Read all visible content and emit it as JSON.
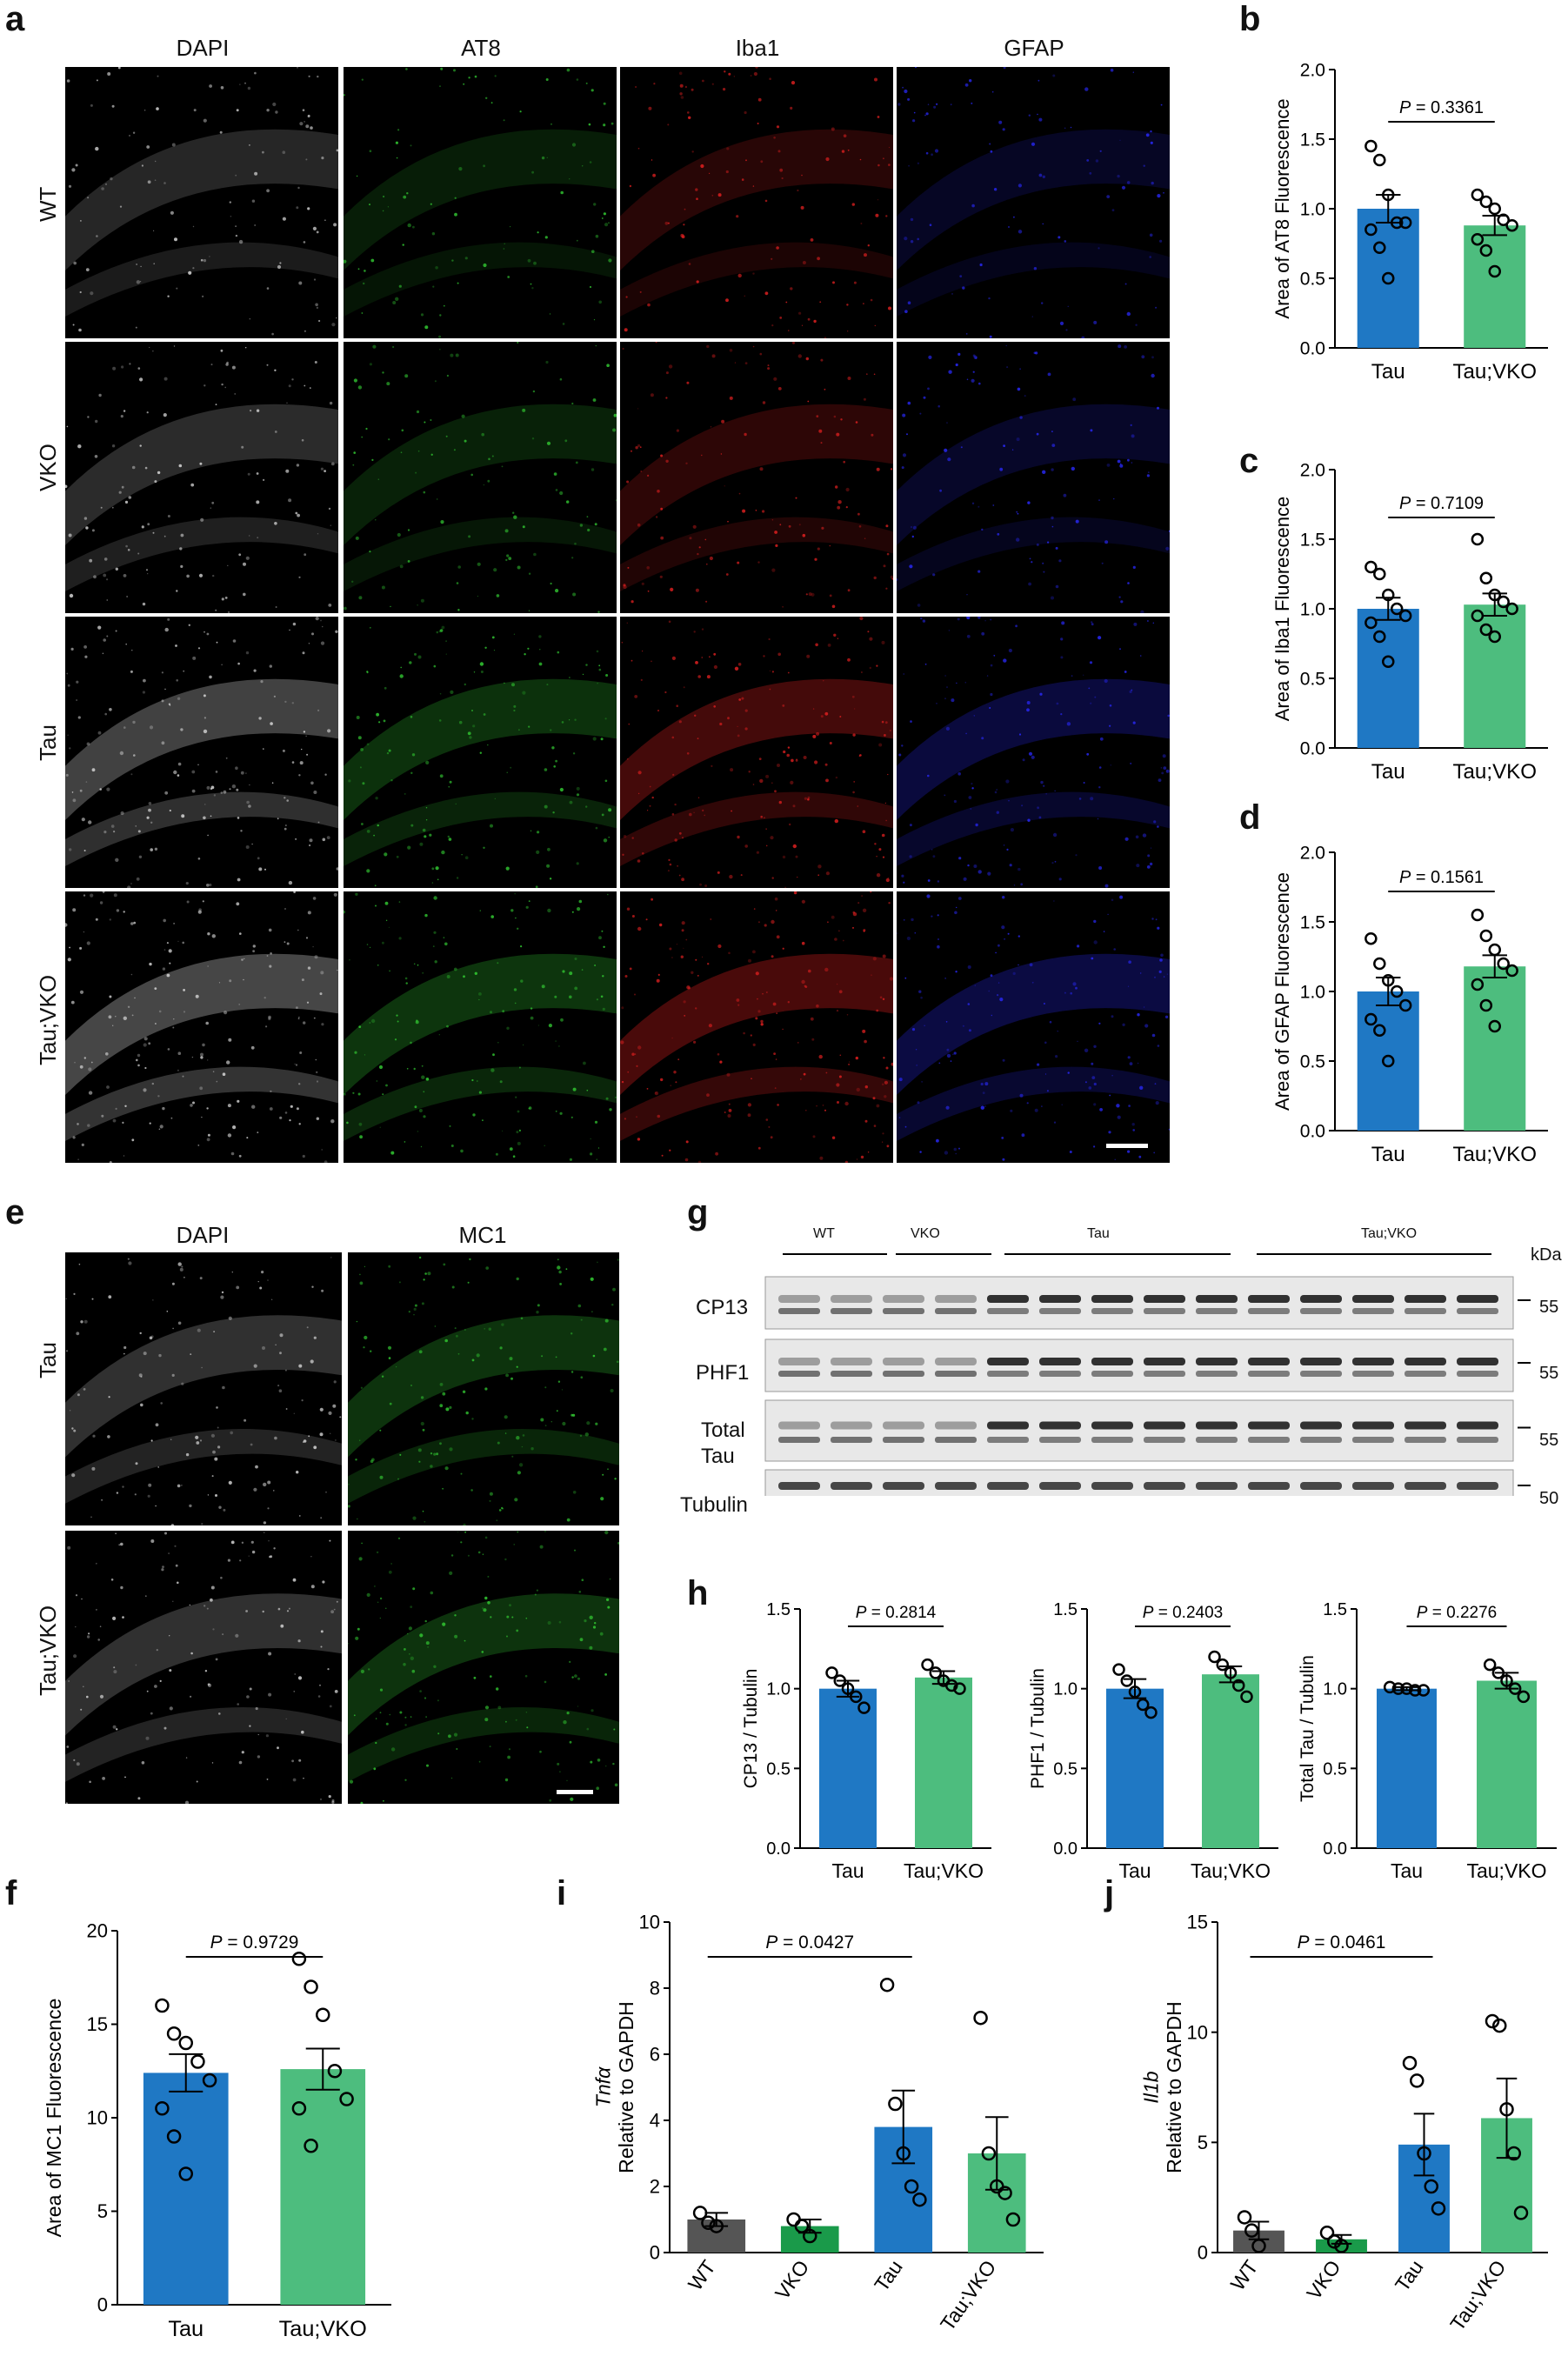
{
  "panels": {
    "a": {
      "label": "a",
      "columns": [
        "DAPI",
        "AT8",
        "Iba1",
        "GFAP"
      ],
      "rows": [
        "WT",
        "VKO",
        "Tau",
        "Tau;VKO"
      ],
      "channel_colors": {
        "DAPI": "#d8d8d8",
        "AT8": "#33cc33",
        "Iba1": "#e02020",
        "GFAP": "#2a2aff"
      }
    },
    "e": {
      "label": "e",
      "columns": [
        "DAPI",
        "MC1"
      ],
      "rows": [
        "Tau",
        "Tau;VKO"
      ]
    },
    "g": {
      "label": "g",
      "groups": [
        "WT",
        "VKO",
        "Tau",
        "Tau;VKO"
      ],
      "unit": "kDa",
      "blots": [
        {
          "label": "CP13",
          "marker": "55"
        },
        {
          "label": "PHF1",
          "marker": "55"
        },
        {
          "label": "Total\nTau",
          "label_line1": "Total",
          "label_line2": "Tau",
          "marker": "55"
        },
        {
          "label": "Tubulin",
          "marker": "50"
        }
      ]
    },
    "h": {
      "label": "h"
    },
    "b": {
      "label": "b"
    },
    "c": {
      "label": "c"
    },
    "d": {
      "label": "d"
    },
    "f": {
      "label": "f"
    },
    "i": {
      "label": "i"
    },
    "j": {
      "label": "j"
    }
  },
  "colors": {
    "tau": "#1f78c4",
    "tau_vko": "#4dbd7e",
    "wt": "#555555",
    "vko": "#1a9a4a"
  },
  "chart_data": [
    {
      "id": "b",
      "type": "bar",
      "categories": [
        "Tau",
        "Tau;VKO"
      ],
      "values": [
        1.0,
        0.88
      ],
      "errors": [
        0.1,
        0.07
      ],
      "points": [
        [
          1.45,
          1.35,
          1.1,
          0.9,
          0.9,
          0.85,
          0.72,
          0.5
        ],
        [
          1.1,
          1.05,
          1.0,
          0.92,
          0.88,
          0.78,
          0.7,
          0.55
        ]
      ],
      "ylabel": "Area of AT8 Fluorescence",
      "ylim": [
        0,
        2.0
      ],
      "yticks": [
        0.0,
        0.5,
        1.0,
        1.5,
        2.0
      ],
      "annotation": "P = 0.3361",
      "annotation_parts": [
        "P",
        " = 0.3361"
      ]
    },
    {
      "id": "c",
      "type": "bar",
      "categories": [
        "Tau",
        "Tau;VKO"
      ],
      "values": [
        1.0,
        1.03
      ],
      "errors": [
        0.08,
        0.08
      ],
      "points": [
        [
          1.3,
          1.25,
          1.1,
          1.0,
          0.95,
          0.9,
          0.8,
          0.62
        ],
        [
          1.5,
          1.22,
          1.1,
          1.05,
          1.0,
          0.95,
          0.85,
          0.8
        ]
      ],
      "ylabel": "Area of Iba1 Fluorescence",
      "ylim": [
        0,
        2.0
      ],
      "yticks": [
        0.0,
        0.5,
        1.0,
        1.5,
        2.0
      ],
      "annotation": "P = 0.7109",
      "annotation_parts": [
        "P",
        " = 0.7109"
      ]
    },
    {
      "id": "d",
      "type": "bar",
      "categories": [
        "Tau",
        "Tau;VKO"
      ],
      "values": [
        1.0,
        1.18
      ],
      "errors": [
        0.1,
        0.08
      ],
      "points": [
        [
          1.38,
          1.2,
          1.08,
          1.0,
          0.9,
          0.8,
          0.72,
          0.5
        ],
        [
          1.55,
          1.4,
          1.3,
          1.2,
          1.15,
          1.05,
          0.9,
          0.75
        ]
      ],
      "ylabel": "Area of GFAP Fluorescence",
      "ylim": [
        0,
        2.0
      ],
      "yticks": [
        0.0,
        0.5,
        1.0,
        1.5,
        2.0
      ],
      "annotation": "P = 0.1561",
      "annotation_parts": [
        "P",
        " = 0.1561"
      ]
    },
    {
      "id": "h1",
      "type": "bar",
      "categories": [
        "Tau",
        "Tau;VKO"
      ],
      "values": [
        1.0,
        1.07
      ],
      "errors": [
        0.05,
        0.04
      ],
      "points": [
        [
          1.1,
          1.05,
          1.0,
          0.95,
          0.88
        ],
        [
          1.15,
          1.1,
          1.05,
          1.02,
          1.0
        ]
      ],
      "ylabel": "CP13 / Tubulin",
      "ylim": [
        0,
        1.5
      ],
      "yticks": [
        0.0,
        0.5,
        1.0,
        1.5
      ],
      "annotation": "P = 0.2814",
      "annotation_parts": [
        "P",
        " = 0.2814"
      ]
    },
    {
      "id": "h2",
      "type": "bar",
      "categories": [
        "Tau",
        "Tau;VKO"
      ],
      "values": [
        1.0,
        1.09
      ],
      "errors": [
        0.06,
        0.05
      ],
      "points": [
        [
          1.12,
          1.05,
          0.98,
          0.9,
          0.85
        ],
        [
          1.2,
          1.15,
          1.1,
          1.02,
          0.95
        ]
      ],
      "ylabel": "PHF1 / Tubulin",
      "ylim": [
        0,
        1.5
      ],
      "yticks": [
        0.0,
        0.5,
        1.0,
        1.5
      ],
      "annotation": "P = 0.2403",
      "annotation_parts": [
        "P",
        " = 0.2403"
      ]
    },
    {
      "id": "h3",
      "type": "bar",
      "categories": [
        "Tau",
        "Tau;VKO"
      ],
      "values": [
        1.0,
        1.05
      ],
      "errors": [
        0.01,
        0.05
      ],
      "points": [
        [
          1.01,
          1.0,
          1.0,
          0.99,
          0.99
        ],
        [
          1.15,
          1.1,
          1.05,
          1.0,
          0.95
        ]
      ],
      "ylabel": "Total Tau / Tubulin",
      "ylim": [
        0,
        1.5
      ],
      "yticks": [
        0.0,
        0.5,
        1.0,
        1.5
      ],
      "annotation": "P = 0.2276",
      "annotation_parts": [
        "P",
        " = 0.2276"
      ]
    },
    {
      "id": "f",
      "type": "bar",
      "categories": [
        "Tau",
        "Tau;VKO"
      ],
      "values": [
        12.4,
        12.6
      ],
      "errors": [
        1.0,
        1.1
      ],
      "points": [
        [
          16.0,
          14.5,
          14.0,
          13.0,
          12.0,
          10.5,
          9.0,
          7.0
        ],
        [
          18.5,
          17.0,
          15.5,
          12.5,
          11.0,
          10.5,
          8.5
        ]
      ],
      "ylabel": "Area of MC1 Fluorescence",
      "ylim": [
        0,
        20
      ],
      "yticks": [
        0,
        5,
        10,
        15,
        20
      ],
      "annotation": "P = 0.9729",
      "annotation_parts": [
        "P",
        " = 0.9729"
      ]
    },
    {
      "id": "i",
      "type": "bar",
      "categories": [
        "WT",
        "VKO",
        "Tau",
        "Tau;VKO"
      ],
      "values": [
        1.0,
        0.8,
        3.8,
        3.0
      ],
      "errors": [
        0.2,
        0.2,
        1.1,
        1.1
      ],
      "points": [
        [
          1.2,
          0.9,
          0.8
        ],
        [
          1.0,
          0.8,
          0.5
        ],
        [
          8.1,
          4.5,
          3.0,
          2.0,
          1.6
        ],
        [
          7.1,
          3.0,
          2.0,
          1.8,
          1.0
        ]
      ],
      "ylabel_italic": "Tnfα",
      "ylabel": "Relative to GAPDH",
      "ylim": [
        0,
        10
      ],
      "yticks": [
        0,
        2,
        4,
        6,
        8,
        10
      ],
      "annotation": "P = 0.0427",
      "annotation_parts": [
        "P",
        " = 0.0427"
      ],
      "annotation_span": [
        0,
        2
      ]
    },
    {
      "id": "j",
      "type": "bar",
      "categories": [
        "WT",
        "VKO",
        "Tau",
        "Tau;VKO"
      ],
      "values": [
        1.0,
        0.6,
        4.9,
        6.1
      ],
      "errors": [
        0.4,
        0.2,
        1.4,
        1.8
      ],
      "points": [
        [
          1.6,
          1.0,
          0.3
        ],
        [
          0.9,
          0.5,
          0.3
        ],
        [
          8.6,
          7.8,
          4.5,
          3.0,
          2.0
        ],
        [
          10.5,
          10.3,
          6.5,
          4.5,
          1.8
        ]
      ],
      "ylabel_italic": "Il1b",
      "ylabel": "Relative to GAPDH",
      "ylim": [
        0,
        15
      ],
      "yticks": [
        0,
        5,
        10,
        15
      ],
      "annotation": "P = 0.0461",
      "annotation_parts": [
        "P",
        " = 0.0461"
      ],
      "annotation_span": [
        0,
        2
      ]
    }
  ]
}
